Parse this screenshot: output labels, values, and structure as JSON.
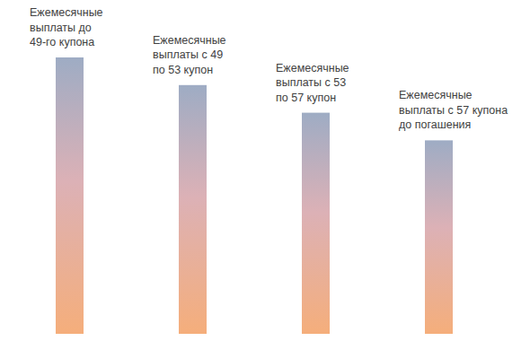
{
  "chart_data": {
    "type": "bar",
    "categories": [
      "Ежемесячные\nвыплаты до\n49-го купона",
      "Ежемесячные\nвыплаты с 49\nпо 53 купон",
      "Ежемесячные\nвыплаты с 53\nпо 57 купон",
      "Ежемесячные\nвыплаты с 57 купона\nдо погашения"
    ],
    "values": [
      100,
      90,
      80,
      70
    ],
    "color": "#f5ae7b",
    "ylim": [
      0,
      100
    ],
    "grid": false,
    "tick_labels": false
  }
}
